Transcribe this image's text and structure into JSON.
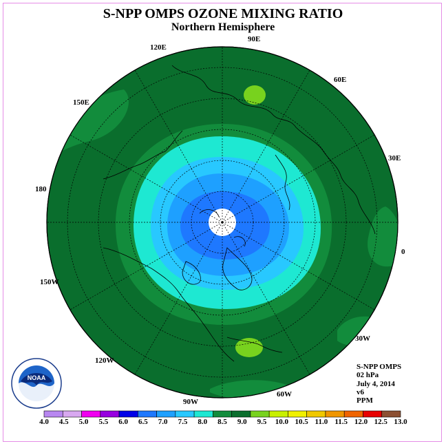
{
  "title": "S-NPP OMPS OZONE MIXING RATIO",
  "subtitle": "Northern Hemisphere",
  "longitude_labels": [
    "90E",
    "60E",
    "30E",
    "0",
    "30W",
    "60W",
    "90W",
    "120W",
    "150W",
    "180",
    "150E",
    "120E"
  ],
  "info": {
    "instrument": "S-NPP OMPS",
    "level": "02 hPa",
    "date": "July 4, 2014",
    "version": "v6",
    "units": "PPM"
  },
  "logo": {
    "text": "NOAA",
    "icon": "noaa-logo",
    "ring_text": "NATIONAL OCEANIC AND ATMOSPHERIC ADMINISTRATION · U.S. DEPARTMENT OF COMMERCE"
  },
  "colorbar": {
    "ticks": [
      "4.0",
      "4.5",
      "5.0",
      "5.5",
      "6.0",
      "6.5",
      "7.0",
      "7.5",
      "8.0",
      "8.5",
      "9.0",
      "9.5",
      "10.0",
      "10.5",
      "11.0",
      "11.5",
      "12.0",
      "12.5",
      "13.0"
    ],
    "colors": [
      "#b887f0",
      "#d8a8f0",
      "#f000f0",
      "#9800e0",
      "#0000e8",
      "#1e78ff",
      "#1ea0ff",
      "#28c8ff",
      "#1ee8d2",
      "#128c3c",
      "#0a6e2d",
      "#78d21e",
      "#c8f000",
      "#f0f000",
      "#f0c800",
      "#f09600",
      "#f06400",
      "#e80000",
      "#8c5032"
    ]
  },
  "map_colors": {
    "background": "#0a6e2d",
    "band_8_5": "#128c3c",
    "band_8_0": "#1ee8d2",
    "band_7_5": "#28c8ff",
    "band_7_0": "#1ea0ff",
    "band_6_5": "#1e78ff",
    "band_9_5": "#78d21e",
    "pole_missing": "#ffffff"
  }
}
